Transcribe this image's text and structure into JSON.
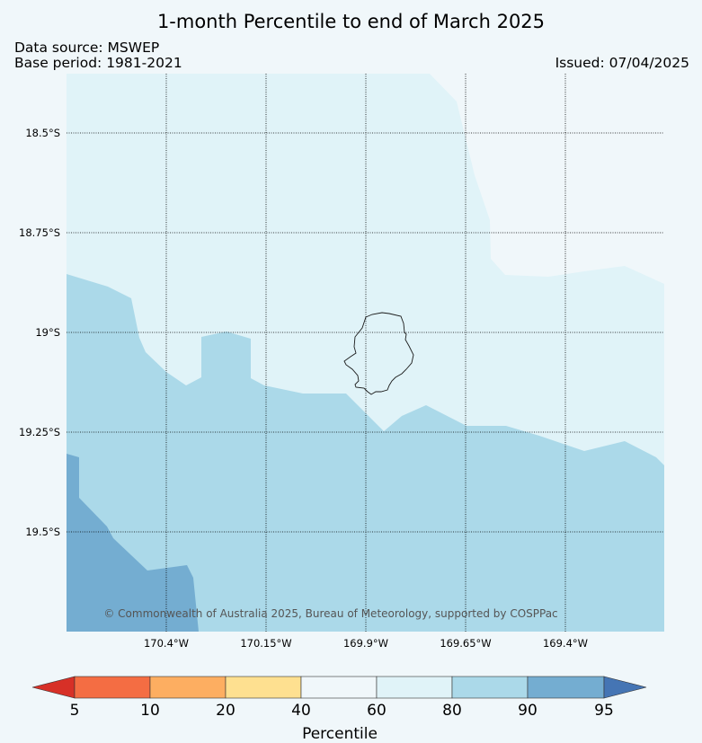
{
  "title": "1-month Percentile to end of March 2025",
  "data_source": "Data source: MSWEP",
  "base_period": "Base period: 1981-2021",
  "issued": "Issued: 07/04/2025",
  "latitude_labels": [
    "18.5°S",
    "18.75°S",
    "19°S",
    "19.25°S",
    "19.5°S"
  ],
  "longitude_labels": [
    "170.4°W",
    "170.15°W",
    "169.9°W",
    "169.65°W",
    "169.4°W"
  ],
  "copyright": "© Commonwealth of Australia 2025, Bureau of Meteorology, supported by COSPPac",
  "colorbar": {
    "label": "Percentile",
    "ticks": [
      "5",
      "10",
      "20",
      "40",
      "60",
      "80",
      "90",
      "95"
    ],
    "colors": {
      "below_5": "#d73027",
      "5_10": "#f46d43",
      "10_20": "#fdae61",
      "20_40": "#fee090",
      "40_60": "#f0f7fa",
      "60_80": "#e0f3f8",
      "80_90": "#abd9e9",
      "90_95": "#74add1",
      "above_95": "#4575b4"
    }
  },
  "regions": [
    {
      "name": "60-80 percentile",
      "color": "#e0f3f8"
    },
    {
      "name": "80-90 percentile",
      "color": "#abd9e9"
    },
    {
      "name": "90-95 percentile",
      "color": "#74add1"
    }
  ]
}
